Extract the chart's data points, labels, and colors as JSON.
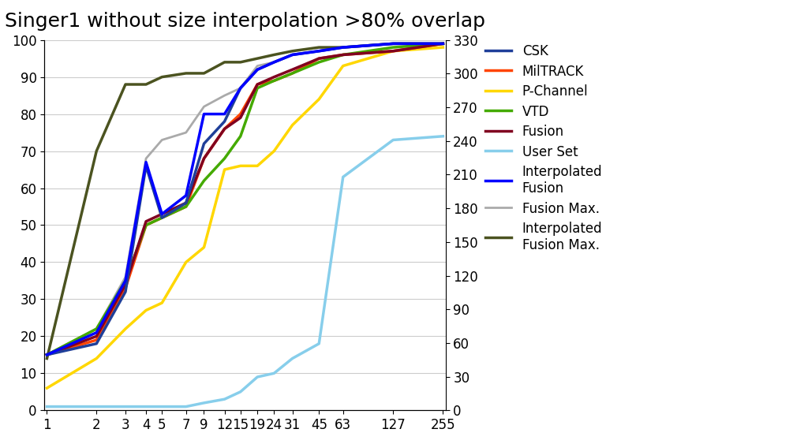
{
  "title": "Singer1 without size interpolation >80% overlap",
  "x_values": [
    1,
    2,
    3,
    4,
    5,
    7,
    9,
    12,
    15,
    19,
    24,
    31,
    45,
    63,
    127,
    255
  ],
  "series": {
    "CSK": {
      "color": "#1F3F99",
      "linewidth": 2.5,
      "zorder": 5,
      "values": [
        15,
        18,
        32,
        66,
        52,
        56,
        72,
        78,
        87,
        92,
        94,
        96,
        97,
        98,
        99,
        99
      ]
    },
    "MilTRACK": {
      "color": "#FF4400",
      "linewidth": 2.5,
      "zorder": 4,
      "values": [
        15,
        19,
        33,
        50,
        52,
        55,
        68,
        76,
        80,
        88,
        89,
        91,
        95,
        96,
        97,
        99
      ]
    },
    "P-Channel": {
      "color": "#FFD700",
      "linewidth": 2.5,
      "zorder": 3,
      "values": [
        6,
        14,
        22,
        27,
        29,
        40,
        44,
        65,
        66,
        66,
        70,
        77,
        84,
        93,
        97,
        98
      ]
    },
    "VTD": {
      "color": "#44AA00",
      "linewidth": 2.5,
      "zorder": 4,
      "values": [
        15,
        22,
        35,
        50,
        52,
        55,
        62,
        68,
        74,
        87,
        89,
        91,
        94,
        96,
        98,
        99
      ]
    },
    "Fusion": {
      "color": "#800020",
      "linewidth": 2.5,
      "zorder": 4,
      "values": [
        15,
        20,
        34,
        51,
        53,
        56,
        68,
        76,
        79,
        88,
        90,
        92,
        95,
        96,
        97,
        99
      ]
    },
    "User Set": {
      "color": "#87CEEB",
      "linewidth": 2.5,
      "zorder": 3,
      "values": [
        1,
        1,
        1,
        1,
        1,
        1,
        2,
        3,
        5,
        9,
        10,
        14,
        18,
        63,
        73,
        74
      ]
    },
    "Interpolated\nFusion": {
      "color": "#0000FF",
      "linewidth": 2.5,
      "zorder": 5,
      "values": [
        15,
        21,
        35,
        67,
        53,
        58,
        80,
        80,
        87,
        92,
        94,
        96,
        97,
        98,
        99,
        99
      ]
    },
    "Fusion Max.": {
      "color": "#AAAAAA",
      "linewidth": 2.0,
      "zorder": 3,
      "values": [
        15,
        22,
        36,
        68,
        73,
        75,
        82,
        85,
        87,
        93,
        94,
        96,
        97,
        98,
        99,
        99
      ]
    },
    "Interpolated\nFusion Max.": {
      "color": "#4B5320",
      "linewidth": 2.5,
      "zorder": 4,
      "values": [
        14,
        70,
        88,
        88,
        90,
        91,
        91,
        94,
        94,
        95,
        96,
        97,
        98,
        98,
        99,
        99
      ]
    }
  },
  "ylim_left": [
    0,
    100
  ],
  "ylim_right": [
    0,
    330
  ],
  "yticks_left": [
    0,
    10,
    20,
    30,
    40,
    50,
    60,
    70,
    80,
    90,
    100
  ],
  "yticks_right": [
    0,
    30,
    60,
    90,
    120,
    150,
    180,
    210,
    240,
    270,
    300,
    330
  ],
  "grid_color": "#CCCCCC",
  "background_color": "#FFFFFF",
  "title_fontsize": 18,
  "legend_labels": [
    "CSK",
    "MilTRACK",
    "P-Channel",
    "VTD",
    "Fusion",
    "User Set",
    "Interpolated\nFusion",
    "Fusion Max.",
    "Interpolated\nFusion Max."
  ]
}
